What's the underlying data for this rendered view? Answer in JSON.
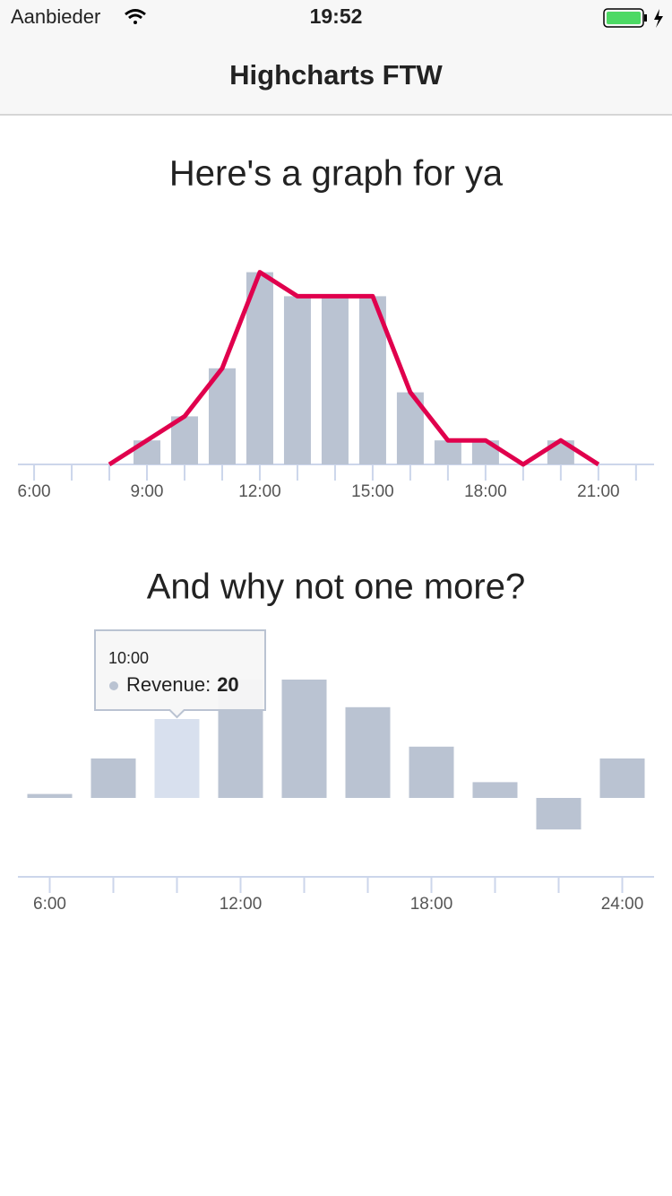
{
  "status_bar": {
    "carrier": "Aanbieder",
    "time": "19:52"
  },
  "nav": {
    "title": "Highcharts FTW"
  },
  "chart_data": [
    {
      "type": "combo",
      "title": "Here's a graph for ya",
      "x": [
        8,
        9,
        10,
        11,
        12,
        13,
        14,
        15,
        16,
        17,
        18,
        19,
        20,
        21
      ],
      "series": [
        {
          "type": "column",
          "color": "#bac3d2",
          "values": [
            0,
            1,
            2,
            4,
            8,
            7,
            7,
            7,
            3,
            1,
            1,
            0,
            1,
            0
          ]
        },
        {
          "type": "line",
          "color": "#e0004d",
          "values": [
            0,
            1,
            2,
            4,
            8,
            7,
            7,
            7,
            3,
            1,
            1,
            0,
            1,
            0
          ]
        }
      ],
      "xlim": [
        5.57,
        22.48
      ],
      "xticks": [
        {
          "value": 6,
          "label": "6:00"
        },
        {
          "value": 9,
          "label": "9:00"
        },
        {
          "value": 12,
          "label": "12:00"
        },
        {
          "value": 15,
          "label": "15:00"
        },
        {
          "value": 18,
          "label": "18:00"
        },
        {
          "value": 21,
          "label": "21:00"
        }
      ],
      "minor_xticks": [
        6,
        7,
        8,
        9,
        10,
        11,
        12,
        13,
        14,
        15,
        16,
        17,
        18,
        19,
        20,
        21,
        22
      ],
      "ylim": [
        0,
        10
      ]
    },
    {
      "type": "bar",
      "title": "And why not one more?",
      "x": [
        6,
        8,
        10,
        12,
        14,
        16,
        18,
        20,
        22,
        24
      ],
      "series": [
        {
          "color": "#bac3d2",
          "highlight_color": "#d8e0ee",
          "values": [
            1,
            10,
            20,
            30,
            30,
            23,
            13,
            4,
            -8,
            10
          ]
        }
      ],
      "xlim": [
        5,
        25
      ],
      "xticks": [
        {
          "value": 6,
          "label": "6:00"
        },
        {
          "value": 12,
          "label": "12:00"
        },
        {
          "value": 18,
          "label": "18:00"
        },
        {
          "value": 24,
          "label": "24:00"
        }
      ],
      "minor_xticks": [
        6,
        8,
        10,
        12,
        14,
        16,
        18,
        20,
        22,
        24
      ],
      "ylim": [
        -20,
        40
      ],
      "tooltip": {
        "header": "10:00",
        "label": "Revenue:"
      }
    }
  ]
}
